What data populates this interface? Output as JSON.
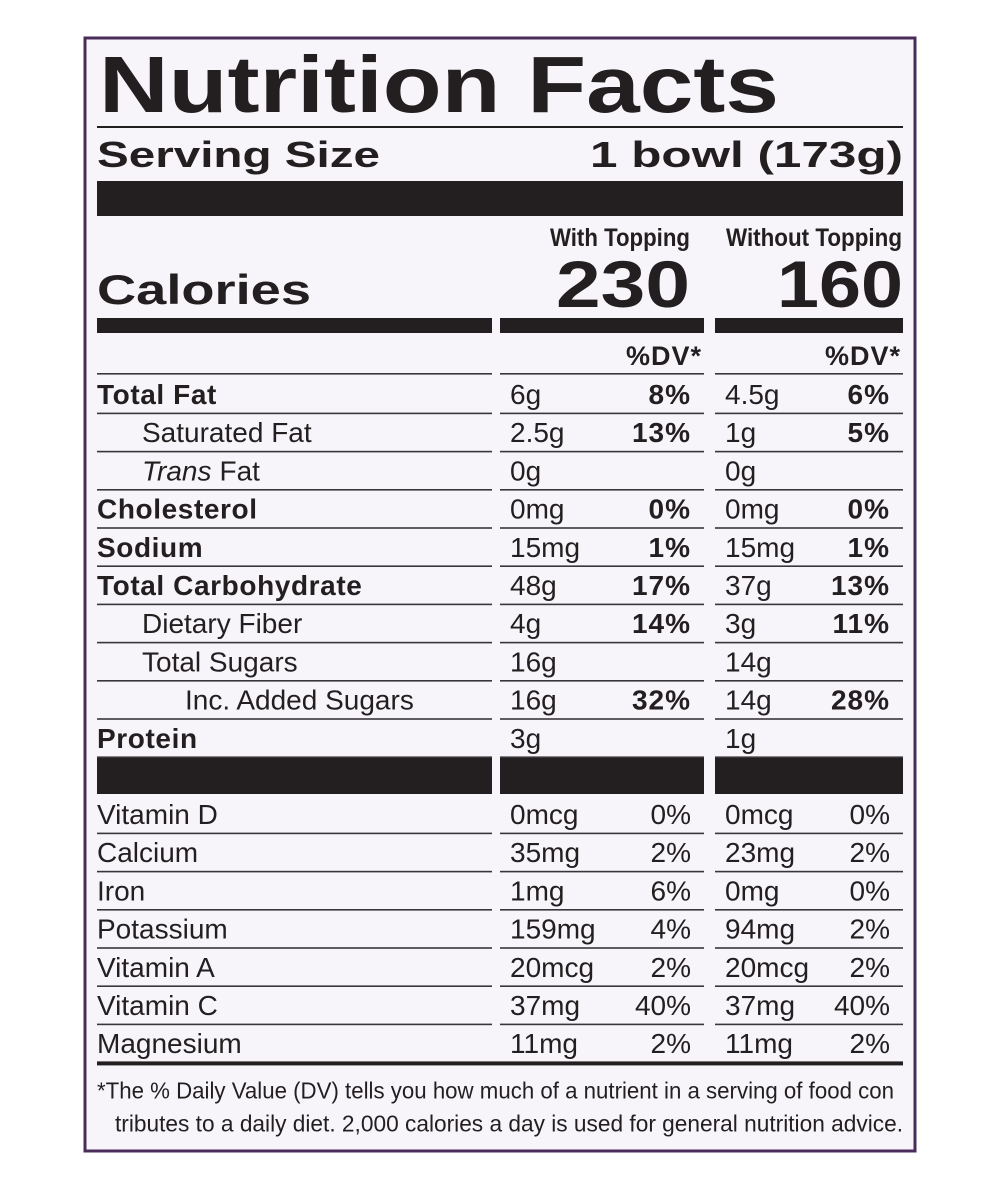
{
  "title": "Nutrition Facts",
  "serving": {
    "label": "Serving Size",
    "value": "1 bowl (173g)"
  },
  "columns": [
    "With Topping",
    "Without Topping"
  ],
  "calories": {
    "label": "Calories",
    "values": [
      230,
      160
    ]
  },
  "dv_header": [
    "%DV*",
    "%DV*"
  ],
  "nutrients": [
    {
      "name": "Total Fat",
      "bold": true,
      "indent": 0,
      "values": [
        {
          "amount": "6g",
          "dv": "8%"
        },
        {
          "amount": "4.5g",
          "dv": "6%"
        }
      ]
    },
    {
      "name": "Saturated Fat",
      "bold": false,
      "indent": 1,
      "values": [
        {
          "amount": "2.5g",
          "dv": "13%"
        },
        {
          "amount": "1g",
          "dv": "5%"
        }
      ]
    },
    {
      "name_italic": "Trans",
      "name": "Fat",
      "bold": false,
      "indent": 1,
      "values": [
        {
          "amount": "0g"
        },
        {
          "amount": "0g"
        }
      ]
    },
    {
      "name": "Cholesterol",
      "bold": true,
      "indent": 0,
      "values": [
        {
          "amount": "0mg",
          "dv": "0%"
        },
        {
          "amount": "0mg",
          "dv": "0%"
        }
      ]
    },
    {
      "name": "Sodium",
      "bold": true,
      "indent": 0,
      "values": [
        {
          "amount": "15mg",
          "dv": "1%"
        },
        {
          "amount": "15mg",
          "dv": "1%"
        }
      ]
    },
    {
      "name": "Total Carbohydrate",
      "bold": true,
      "indent": 0,
      "values": [
        {
          "amount": "48g",
          "dv": "17%"
        },
        {
          "amount": "37g",
          "dv": "13%"
        }
      ]
    },
    {
      "name": "Dietary Fiber",
      "bold": false,
      "indent": 1,
      "values": [
        {
          "amount": "4g",
          "dv": "14%"
        },
        {
          "amount": "3g",
          "dv": "11%"
        }
      ]
    },
    {
      "name": "Total Sugars",
      "bold": false,
      "indent": 1,
      "values": [
        {
          "amount": "16g"
        },
        {
          "amount": "14g"
        }
      ]
    },
    {
      "name": "Inc. Added Sugars",
      "bold": false,
      "indent": 2,
      "values": [
        {
          "amount": "16g",
          "dv": "32%"
        },
        {
          "amount": "14g",
          "dv": "28%"
        }
      ]
    },
    {
      "name": "Protein",
      "bold": true,
      "indent": 0,
      "values": [
        {
          "amount": "3g"
        },
        {
          "amount": "1g"
        }
      ]
    }
  ],
  "vitamins": [
    {
      "name": "Vitamin D",
      "values": [
        {
          "amount": "0mcg",
          "dv": "0%"
        },
        {
          "amount": "0mcg",
          "dv": "0%"
        }
      ]
    },
    {
      "name": "Calcium",
      "values": [
        {
          "amount": "35mg",
          "dv": "2%"
        },
        {
          "amount": "23mg",
          "dv": "2%"
        }
      ]
    },
    {
      "name": "Iron",
      "values": [
        {
          "amount": "1mg",
          "dv": "6%"
        },
        {
          "amount": "0mg",
          "dv": "0%"
        }
      ]
    },
    {
      "name": "Potassium",
      "values": [
        {
          "amount": "159mg",
          "dv": "4%"
        },
        {
          "amount": "94mg",
          "dv": "2%"
        }
      ]
    },
    {
      "name": "Vitamin A",
      "values": [
        {
          "amount": "20mcg",
          "dv": "2%"
        },
        {
          "amount": "20mcg",
          "dv": "2%"
        }
      ]
    },
    {
      "name": "Vitamin C",
      "values": [
        {
          "amount": "37mg",
          "dv": "40%"
        },
        {
          "amount": "37mg",
          "dv": "40%"
        }
      ]
    },
    {
      "name": "Magnesium",
      "values": [
        {
          "amount": "11mg",
          "dv": "2%"
        },
        {
          "amount": "11mg",
          "dv": "2%"
        }
      ]
    }
  ],
  "footnote": [
    "*The % Daily Value (DV) tells you how much of a nutrient in a serving of food con",
    "tributes to a daily diet. 2,000 calories a day is used for general nutrition advice."
  ]
}
